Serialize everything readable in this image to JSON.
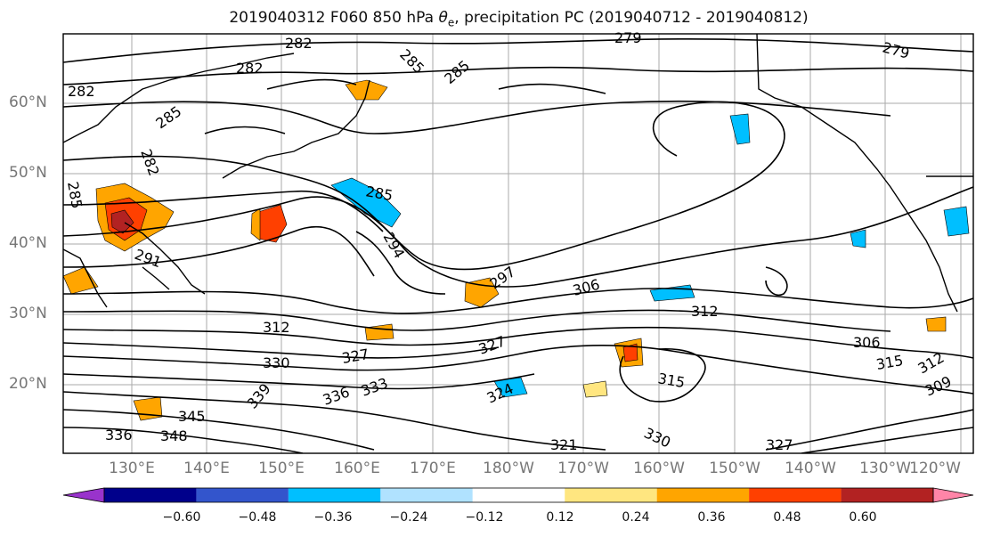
{
  "title_main": "2019040312 F060 850 hPa ",
  "title_theta": "θ",
  "title_sub": "e",
  "title_rest": ", precipitation PC (2019040712 - 2019040812)",
  "lat_labels": [
    "60°N",
    "50°N",
    "40°N",
    "30°N",
    "20°N"
  ],
  "lon_labels": [
    "130°E",
    "140°E",
    "150°E",
    "160°E",
    "170°E",
    "180°W",
    "170°W",
    "160°W",
    "150°W",
    "140°W",
    "130°W",
    "120°W"
  ],
  "colorbar": {
    "colors": [
      "#9933cc",
      "#00008b",
      "#3355cc",
      "#00bfff",
      "#b0e2ff",
      "#ffffff",
      "#ffe680",
      "#ffa500",
      "#ff4000",
      "#b22222",
      "#ff85a8"
    ],
    "ticks": [
      "−0.60",
      "−0.48",
      "−0.36",
      "−0.24",
      "−0.12",
      "0.12",
      "0.24",
      "0.36",
      "0.48",
      "0.60"
    ]
  },
  "contour_labels": [
    {
      "text": "282"
    },
    {
      "text": "282"
    },
    {
      "text": "282"
    },
    {
      "text": "285"
    },
    {
      "text": "282"
    },
    {
      "text": "285"
    },
    {
      "text": "285"
    },
    {
      "text": "285"
    },
    {
      "text": "279"
    },
    {
      "text": "279"
    },
    {
      "text": "285"
    },
    {
      "text": "294"
    },
    {
      "text": "291"
    },
    {
      "text": "297"
    },
    {
      "text": "306"
    },
    {
      "text": "312"
    },
    {
      "text": "312"
    },
    {
      "text": "330"
    },
    {
      "text": "327"
    },
    {
      "text": "327"
    },
    {
      "text": "306"
    },
    {
      "text": "315"
    },
    {
      "text": "312"
    },
    {
      "text": "315"
    },
    {
      "text": "309"
    },
    {
      "text": "339"
    },
    {
      "text": "336"
    },
    {
      "text": "333"
    },
    {
      "text": "345"
    },
    {
      "text": "348"
    },
    {
      "text": "324"
    },
    {
      "text": "321"
    },
    {
      "text": "330"
    },
    {
      "text": "327"
    },
    {
      "text": "336"
    }
  ]
}
